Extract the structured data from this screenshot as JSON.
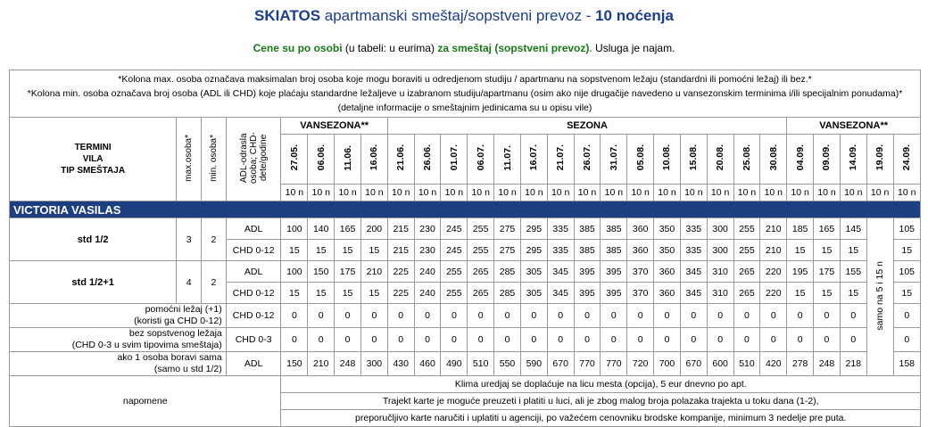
{
  "title": {
    "bold1": "SKIATOS",
    "middle": " apartmanski smeštaj/sopstveni prevoz - ",
    "bold2": "10 noćenja"
  },
  "subtitle": {
    "part1": "Cene su po osobi",
    "part2": " (u tabeli: u eurima) ",
    "part3": "za smeštaj (sopstveni prevoz)",
    "part4": ". Usluga je najam."
  },
  "notes": [
    "*Kolona max. osoba označava maksimalan broj osoba koje mogu boraviti u odredjenom studiju / apartmanu na sopstvenom ležaju (standardni ili pomoćni ležaj) ili bez.*",
    "*Kolona min. osoba označava broj osoba (ADL ili CHD) koje plaćaju standardne ležaljeve u izabranom studiju/apartmanu (osim ako nije drugačije navedeno u vansezonskim terminima i/ili specijalnim ponudama)*",
    "(detaljne informacije o smeštajnim jedinicama su u opisu vile)"
  ],
  "header": {
    "termini": "TERMINI",
    "vila": "VILA",
    "tip": "TIP SMEŠTAJA",
    "max": "max.osoba*",
    "min": "min. osoba*",
    "age": "ADL-odrasla osoba; CHD-dete/godine",
    "seasons": [
      "VANSEZONA**",
      "SEZONA",
      "VANSEZONA**"
    ],
    "dates": [
      "27.05.",
      "06.06.",
      "11.06.",
      "16.06.",
      "21.06.",
      "26.06.",
      "01.07.",
      "06.07.",
      "11.07.",
      "16.07.",
      "21.07.",
      "26.07.",
      "31.07.",
      "05.08.",
      "10.08.",
      "15.08.",
      "20.08.",
      "25.08.",
      "30.08.",
      "04.09.",
      "09.09.",
      "14.09.",
      "19.09.",
      "24.09."
    ],
    "nights": "10 n"
  },
  "villa": "VICTORIA VASILAS",
  "rows": [
    {
      "name": "std 1/2",
      "max": "3",
      "min": "2",
      "sub": [
        {
          "type": "ADL",
          "prices": [
            "100",
            "140",
            "165",
            "200",
            "215",
            "230",
            "245",
            "255",
            "275",
            "295",
            "335",
            "385",
            "385",
            "360",
            "350",
            "335",
            "300",
            "255",
            "210",
            "185",
            "165",
            "145",
            "",
            "105"
          ]
        },
        {
          "type": "CHD 0-12",
          "prices": [
            "15",
            "15",
            "15",
            "15",
            "215",
            "230",
            "245",
            "255",
            "275",
            "295",
            "335",
            "385",
            "385",
            "360",
            "350",
            "335",
            "300",
            "255",
            "210",
            "15",
            "15",
            "15",
            "",
            "15"
          ]
        }
      ]
    },
    {
      "name": "std 1/2+1",
      "max": "4",
      "min": "2",
      "sub": [
        {
          "type": "ADL",
          "prices": [
            "100",
            "150",
            "175",
            "210",
            "225",
            "240",
            "255",
            "265",
            "285",
            "305",
            "345",
            "395",
            "395",
            "370",
            "360",
            "345",
            "310",
            "265",
            "220",
            "195",
            "175",
            "155",
            "",
            "105"
          ]
        },
        {
          "type": "CHD 0-12",
          "prices": [
            "15",
            "15",
            "15",
            "15",
            "225",
            "240",
            "255",
            "265",
            "285",
            "305",
            "345",
            "395",
            "395",
            "370",
            "360",
            "345",
            "310",
            "265",
            "220",
            "15",
            "15",
            "15",
            "",
            "15"
          ]
        }
      ]
    }
  ],
  "extras": [
    {
      "label1": "pomoćni ležaj (+1)",
      "label2": "(koristi ga CHD 0-12)",
      "type": "CHD 0-12",
      "prices": [
        "0",
        "0",
        "0",
        "0",
        "0",
        "0",
        "0",
        "0",
        "0",
        "0",
        "0",
        "0",
        "0",
        "0",
        "0",
        "0",
        "0",
        "0",
        "0",
        "0",
        "0",
        "0",
        "",
        "0"
      ]
    },
    {
      "label1": "bez sopstvenog ležaja",
      "label2": "(CHD 0-3 u svim tipovima smeštaja)",
      "type": "CHD 0-3",
      "prices": [
        "0",
        "0",
        "0",
        "0",
        "0",
        "0",
        "0",
        "0",
        "0",
        "0",
        "0",
        "0",
        "0",
        "0",
        "0",
        "0",
        "0",
        "0",
        "0",
        "0",
        "0",
        "0",
        "",
        "0"
      ]
    },
    {
      "label1": "ako 1 osoba boravi sama",
      "label2": "(samo u std 1/2)",
      "type": "ADL",
      "prices": [
        "150",
        "210",
        "248",
        "300",
        "430",
        "460",
        "490",
        "510",
        "550",
        "590",
        "670",
        "770",
        "770",
        "720",
        "700",
        "670",
        "600",
        "510",
        "420",
        "278",
        "248",
        "218",
        "",
        "158"
      ]
    }
  ],
  "samo": "samo na 5 i 15 n",
  "napomene": {
    "label": "napomene",
    "lines": [
      "Klima uredjaj se doplaćuje na licu mesta (opcija), 5 eur dnevno po apt.",
      "Trajekt karte je moguće preuzeti i platiti u luci, ali je zbog malog broja polazaka trajekta u toku dana (1-2),",
      "preporučljivo karte naručiti i uplatiti u agenciji, po važećem cenovniku brodske kompanije, minimum 3 nedelje pre puta."
    ]
  }
}
